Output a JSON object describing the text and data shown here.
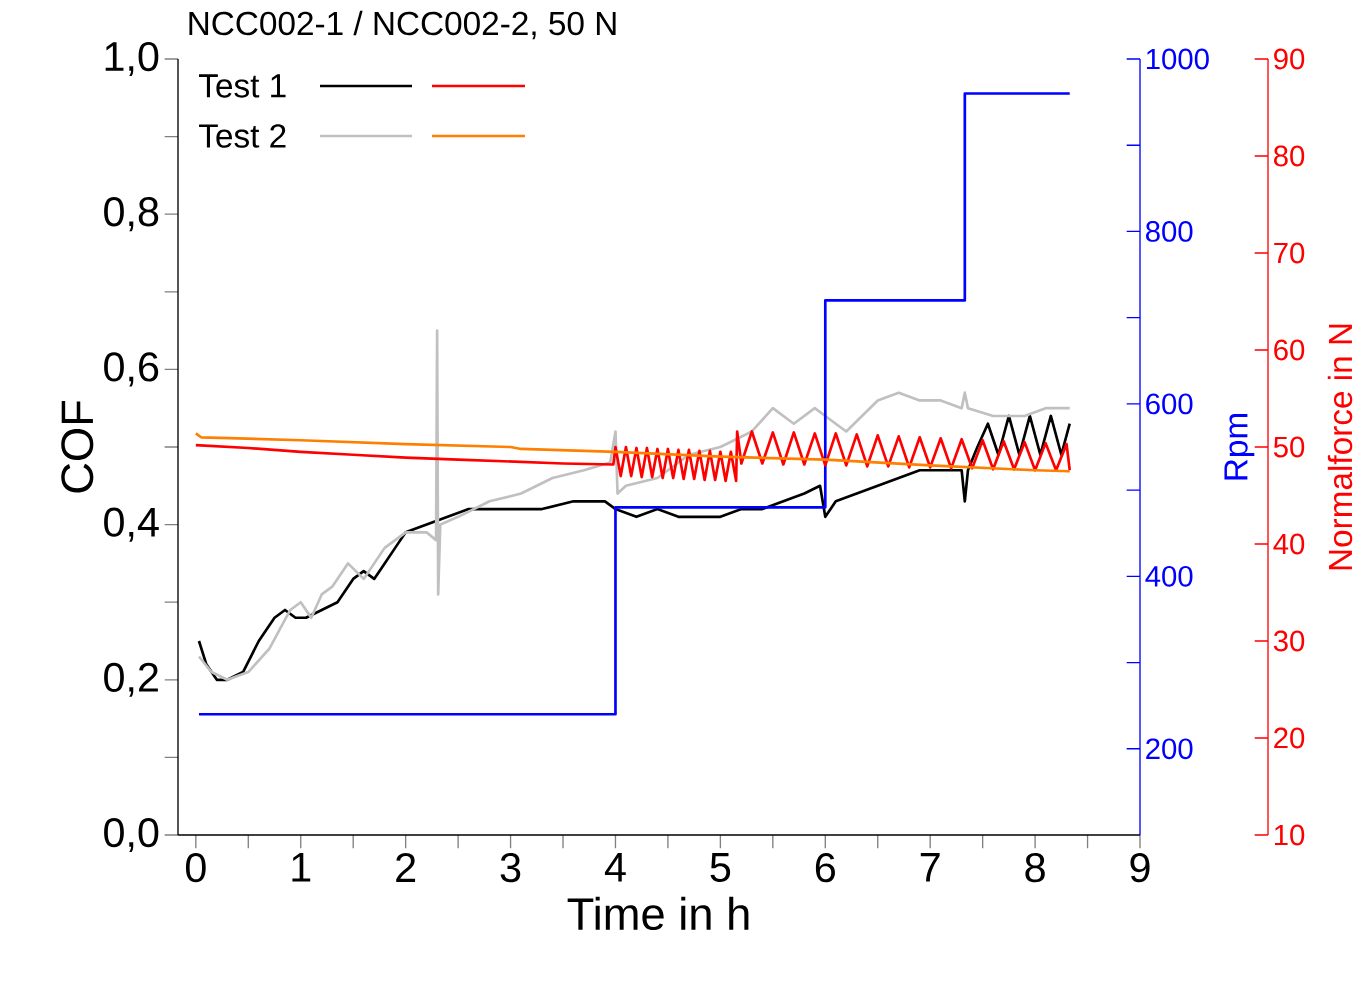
{
  "chart_data": {
    "type": "line",
    "title": "NCC002-1 / NCC002-2, 50 N",
    "xlabel": "Time in h",
    "ylabel": "COF",
    "y2label": "Rpm",
    "y3label": "Normalforce in N",
    "xlim": [
      -0.17,
      9
    ],
    "xticks": [
      0,
      {
        "value": 0.5,
        "label": null
      },
      1,
      {
        "value": 1.5,
        "label": null
      },
      2,
      {
        "value": 2.5,
        "label": null
      },
      3,
      {
        "value": 3.5,
        "label": null
      },
      4,
      {
        "value": 4.5,
        "label": null
      },
      5,
      {
        "value": 5.5,
        "label": null
      },
      6,
      {
        "value": 6.5,
        "label": null
      },
      7,
      {
        "value": 7.5,
        "label": null
      },
      8,
      {
        "value": 8.5,
        "label": null
      },
      9
    ],
    "ylim": [
      0,
      1
    ],
    "yticks": [
      {
        "value": 0,
        "label": "0,0"
      },
      {
        "value": 0.1,
        "label": null
      },
      {
        "value": 0.2,
        "label": "0,2"
      },
      {
        "value": 0.3,
        "label": null
      },
      {
        "value": 0.4,
        "label": "0,4"
      },
      {
        "value": 0.5,
        "label": null
      },
      {
        "value": 0.6,
        "label": "0,6"
      },
      {
        "value": 0.7,
        "label": null
      },
      {
        "value": 0.8,
        "label": "0,8"
      },
      {
        "value": 0.9,
        "label": null
      },
      {
        "value": 1,
        "label": "1,0"
      }
    ],
    "y2lim": [
      100,
      1000
    ],
    "y2ticks": [
      200,
      {
        "value": 300,
        "label": null
      },
      400,
      {
        "value": 500,
        "label": null
      },
      600,
      {
        "value": 700,
        "label": null
      },
      800,
      {
        "value": 900,
        "label": null
      },
      1000
    ],
    "y3lim": [
      10,
      90
    ],
    "y3ticks": [
      10,
      20,
      30,
      40,
      50,
      60,
      70,
      80,
      90
    ],
    "legend": "top left",
    "series": [
      {
        "name": "Test 1",
        "color": "#000000",
        "x": [
          0.03,
          0.1,
          0.2,
          0.3,
          0.45,
          0.6,
          0.75,
          0.85,
          0.95,
          1.05,
          1.2,
          1.35,
          1.5,
          1.6,
          1.7,
          1.8,
          1.9,
          2.0,
          2.2,
          2.4,
          2.6,
          2.8,
          3.0,
          3.3,
          3.6,
          3.9,
          4.0,
          4.2,
          4.4,
          4.6,
          4.8,
          5.0,
          5.2,
          5.4,
          5.6,
          5.8,
          5.95,
          6.0,
          6.1,
          6.3,
          6.5,
          6.7,
          6.9,
          7.1,
          7.3,
          7.33,
          7.36,
          7.45,
          7.55,
          7.65,
          7.75,
          7.85,
          7.95,
          8.05,
          8.15,
          8.25,
          8.33
        ],
        "values": [
          0.25,
          0.22,
          0.2,
          0.2,
          0.21,
          0.25,
          0.28,
          0.29,
          0.28,
          0.28,
          0.29,
          0.3,
          0.33,
          0.34,
          0.33,
          0.35,
          0.37,
          0.39,
          0.4,
          0.41,
          0.42,
          0.42,
          0.42,
          0.42,
          0.43,
          0.43,
          0.42,
          0.41,
          0.42,
          0.41,
          0.41,
          0.41,
          0.42,
          0.42,
          0.43,
          0.44,
          0.45,
          0.41,
          0.43,
          0.44,
          0.45,
          0.46,
          0.47,
          0.47,
          0.47,
          0.43,
          0.47,
          0.5,
          0.53,
          0.49,
          0.54,
          0.49,
          0.54,
          0.49,
          0.54,
          0.49,
          0.53
        ]
      },
      {
        "name": "Test 2",
        "color": "#c0c0c0",
        "x": [
          0.03,
          0.15,
          0.3,
          0.5,
          0.7,
          0.9,
          1.0,
          1.1,
          1.2,
          1.3,
          1.45,
          1.6,
          1.8,
          2.0,
          2.2,
          2.29,
          2.3,
          2.31,
          2.33,
          2.5,
          2.8,
          3.1,
          3.4,
          3.7,
          3.95,
          4.0,
          4.02,
          4.1,
          4.4,
          4.7,
          5.0,
          5.3,
          5.5,
          5.7,
          5.9,
          6.0,
          6.2,
          6.5,
          6.7,
          6.9,
          7.1,
          7.3,
          7.33,
          7.36,
          7.6,
          7.9,
          8.1,
          8.33
        ],
        "values": [
          0.23,
          0.21,
          0.2,
          0.21,
          0.24,
          0.29,
          0.3,
          0.28,
          0.31,
          0.32,
          0.35,
          0.33,
          0.37,
          0.39,
          0.39,
          0.38,
          0.65,
          0.31,
          0.4,
          0.41,
          0.43,
          0.44,
          0.46,
          0.47,
          0.48,
          0.52,
          0.44,
          0.45,
          0.46,
          0.49,
          0.5,
          0.52,
          0.55,
          0.53,
          0.55,
          0.54,
          0.52,
          0.56,
          0.57,
          0.56,
          0.56,
          0.55,
          0.57,
          0.55,
          0.54,
          0.54,
          0.55,
          0.55
        ]
      },
      {
        "color": "#ff0000",
        "axis": "y3",
        "x": [
          0,
          0.5,
          1,
          1.5,
          2,
          2.5,
          3,
          3.5,
          3.98,
          4.0,
          4.05,
          4.1,
          4.15,
          4.2,
          4.25,
          4.3,
          4.35,
          4.4,
          4.45,
          4.5,
          4.55,
          4.6,
          4.65,
          4.7,
          4.75,
          4.8,
          4.85,
          4.9,
          4.95,
          5.0,
          5.05,
          5.1,
          5.15,
          5.16,
          5.2,
          5.3,
          5.4,
          5.5,
          5.6,
          5.7,
          5.8,
          5.9,
          6.0,
          6.1,
          6.2,
          6.3,
          6.4,
          6.5,
          6.6,
          6.7,
          6.8,
          6.9,
          7.0,
          7.1,
          7.2,
          7.3,
          7.4,
          7.5,
          7.6,
          7.7,
          7.8,
          7.9,
          8.0,
          8.1,
          8.2,
          8.3,
          8.33
        ],
        "values": [
          50.2,
          49.9,
          49.5,
          49.2,
          48.9,
          48.7,
          48.5,
          48.3,
          48.2,
          50.0,
          47.0,
          50.0,
          47.0,
          49.9,
          46.9,
          49.9,
          46.9,
          49.8,
          46.8,
          49.8,
          46.8,
          49.7,
          46.7,
          49.7,
          46.7,
          49.6,
          46.6,
          49.6,
          46.6,
          49.5,
          46.5,
          49.5,
          46.5,
          51.6,
          48.3,
          51.6,
          48.3,
          51.5,
          48.2,
          51.5,
          48.2,
          51.4,
          48.1,
          51.4,
          48.1,
          51.3,
          48.0,
          51.2,
          48.0,
          51.1,
          47.9,
          51.0,
          47.9,
          50.9,
          47.8,
          50.8,
          47.8,
          50.7,
          47.7,
          50.6,
          47.7,
          50.5,
          47.6,
          50.4,
          47.6,
          50.3,
          47.6
        ]
      },
      {
        "color": "#ff8000",
        "axis": "y3",
        "x": [
          0,
          0.05,
          1,
          2,
          3,
          3.1,
          4,
          5,
          6,
          7,
          8,
          8.33
        ],
        "values": [
          51.4,
          51.0,
          50.7,
          50.3,
          50.0,
          49.8,
          49.5,
          49.0,
          48.7,
          48.1,
          47.6,
          47.5
        ]
      },
      {
        "type": "step",
        "color": "#0000ff",
        "axis": "y2",
        "x": [
          0.03,
          4,
          6,
          7.33,
          8.33
        ],
        "values": [
          240,
          480,
          720,
          960,
          960
        ]
      }
    ]
  }
}
